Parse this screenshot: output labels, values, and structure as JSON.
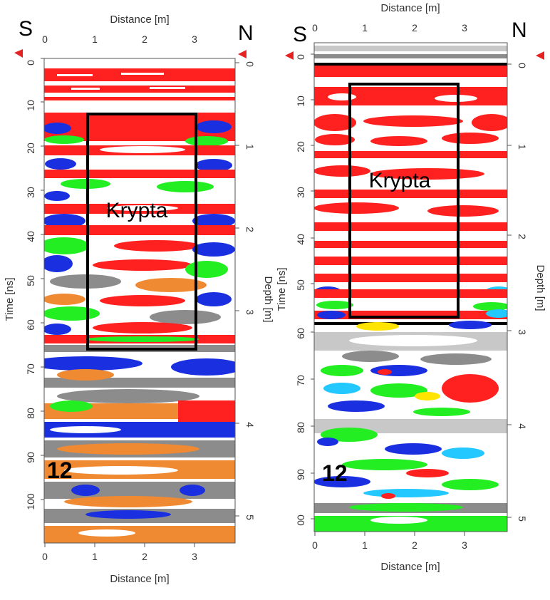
{
  "colors": {
    "red": "#ff2020",
    "green": "#22ee22",
    "blue": "#1a2fe0",
    "gray": "#8c8c8c",
    "light_gray": "#c8c8c8",
    "white": "#ffffff",
    "orange": "#f08a32",
    "yellow": "#ffe400",
    "cyan": "#22c8ff",
    "black": "#000000",
    "marker": "#e52222"
  },
  "panels": [
    {
      "id": "left",
      "distance_axis_title_top": "Distance [m]",
      "distance_axis_title_bottom": "Distance [m]",
      "distance_ticks": [
        "0",
        "1",
        "2",
        "3"
      ],
      "time_axis_title": "Time [ns]",
      "time_ticks": [
        "0",
        "10",
        "20",
        "30",
        "40",
        "50",
        "60",
        "70",
        "80",
        "90",
        "100"
      ],
      "depth_axis_title": "Depth [m]",
      "depth_ticks": [
        "0",
        "1",
        "2",
        "3",
        "4",
        "5"
      ],
      "direction_left": "S",
      "direction_right": "N",
      "anomaly_label": "Krypta",
      "profile_id": "12"
    },
    {
      "id": "right",
      "distance_axis_title_top": "Distance [m]",
      "distance_axis_title_bottom": "Distance [m]",
      "distance_ticks": [
        "0",
        "1",
        "2",
        "3"
      ],
      "time_axis_title": "Time [ns]",
      "time_ticks": [
        "0",
        "10",
        "20",
        "30",
        "40",
        "50",
        "60",
        "70",
        "80",
        "90",
        "00"
      ],
      "depth_axis_title": "Depth [m]",
      "depth_ticks": [
        "0",
        "1",
        "2",
        "3",
        "4",
        "5"
      ],
      "direction_left": "S",
      "direction_right": "N",
      "anomaly_label": "Krypta",
      "profile_id": "12"
    }
  ]
}
